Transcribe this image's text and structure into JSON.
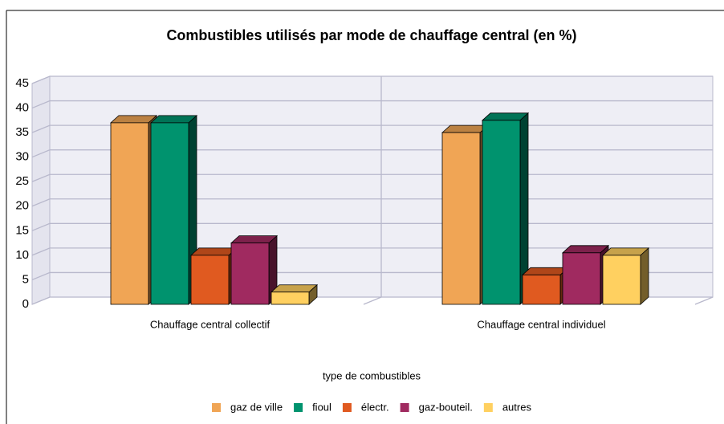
{
  "chart_data": {
    "type": "bar",
    "title": "Combustibles utilisés par mode de chauffage central (en %)",
    "x_label": "type de combustibles",
    "categories": [
      "Chauffage central collectif",
      "Chauffage central individuel"
    ],
    "series": [
      {
        "name": "gaz de ville",
        "color": "#f0a555",
        "values": [
          37,
          35
        ]
      },
      {
        "name": "fioul",
        "color": "#00936e",
        "values": [
          37,
          37.5
        ]
      },
      {
        "name": "électr.",
        "color": "#e05a20",
        "values": [
          10,
          6
        ]
      },
      {
        "name": "gaz-bouteil.",
        "color": "#a02a60",
        "values": [
          12.5,
          10.5
        ]
      },
      {
        "name": "autres",
        "color": "#ffd060",
        "values": [
          2.5,
          10
        ]
      }
    ],
    "ylim": [
      0,
      45
    ],
    "yticks": [
      0,
      5,
      10,
      15,
      20,
      25,
      30,
      35,
      40,
      45
    ],
    "grid": true,
    "legend": "bottom"
  }
}
